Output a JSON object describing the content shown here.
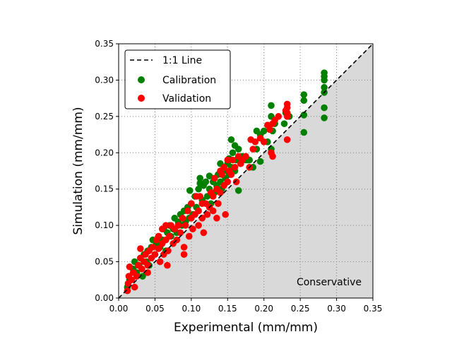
{
  "chart_data": {
    "type": "scatter",
    "xlabel": "Experimental (mm/mm)",
    "ylabel": "Simulation (mm/mm)",
    "xlim": [
      0,
      0.35
    ],
    "ylim": [
      0,
      0.35
    ],
    "xticks": [
      "0.00",
      "0.05",
      "0.10",
      "0.15",
      "0.20",
      "0.25",
      "0.30",
      "0.35"
    ],
    "yticks": [
      "0.00",
      "0.05",
      "0.10",
      "0.15",
      "0.20",
      "0.25",
      "0.30",
      "0.35"
    ],
    "grid": true,
    "legend_position": "top-left",
    "annotation": "Conservative",
    "reference_line": {
      "label": "1:1 Line",
      "style": "dashed",
      "color": "#000000"
    },
    "shaded_region_color": "#d9d9d9",
    "series": [
      {
        "name": "Calibration",
        "color": "#008000",
        "points": [
          [
            0.012,
            0.015
          ],
          [
            0.015,
            0.025
          ],
          [
            0.02,
            0.04
          ],
          [
            0.022,
            0.05
          ],
          [
            0.025,
            0.035
          ],
          [
            0.028,
            0.045
          ],
          [
            0.03,
            0.055
          ],
          [
            0.033,
            0.03
          ],
          [
            0.035,
            0.06
          ],
          [
            0.038,
            0.05
          ],
          [
            0.04,
            0.065
          ],
          [
            0.042,
            0.045
          ],
          [
            0.045,
            0.07
          ],
          [
            0.047,
            0.08
          ],
          [
            0.05,
            0.06
          ],
          [
            0.052,
            0.075
          ],
          [
            0.055,
            0.085
          ],
          [
            0.057,
            0.07
          ],
          [
            0.06,
            0.08
          ],
          [
            0.062,
            0.095
          ],
          [
            0.065,
            0.065
          ],
          [
            0.067,
            0.09
          ],
          [
            0.07,
            0.1
          ],
          [
            0.072,
            0.085
          ],
          [
            0.075,
            0.095
          ],
          [
            0.077,
            0.11
          ],
          [
            0.08,
            0.09
          ],
          [
            0.082,
            0.105
          ],
          [
            0.085,
            0.115
          ],
          [
            0.087,
            0.1
          ],
          [
            0.09,
            0.12
          ],
          [
            0.092,
            0.105
          ],
          [
            0.095,
            0.125
          ],
          [
            0.097,
            0.11
          ],
          [
            0.1,
            0.13
          ],
          [
            0.102,
            0.115
          ],
          [
            0.105,
            0.14
          ],
          [
            0.107,
            0.125
          ],
          [
            0.11,
            0.15
          ],
          [
            0.112,
            0.165
          ],
          [
            0.115,
            0.135
          ],
          [
            0.117,
            0.155
          ],
          [
            0.12,
            0.16
          ],
          [
            0.122,
            0.14
          ],
          [
            0.125,
            0.15
          ],
          [
            0.127,
            0.13
          ],
          [
            0.13,
            0.16
          ],
          [
            0.132,
            0.145
          ],
          [
            0.135,
            0.155
          ],
          [
            0.137,
            0.17
          ],
          [
            0.14,
            0.16
          ],
          [
            0.142,
            0.15
          ],
          [
            0.145,
            0.175
          ],
          [
            0.147,
            0.165
          ],
          [
            0.15,
            0.185
          ],
          [
            0.152,
            0.17
          ],
          [
            0.155,
            0.18
          ],
          [
            0.157,
            0.2
          ],
          [
            0.16,
            0.175
          ],
          [
            0.162,
            0.19
          ],
          [
            0.165,
            0.148
          ],
          [
            0.168,
            0.185
          ],
          [
            0.17,
            0.195
          ],
          [
            0.175,
            0.19
          ],
          [
            0.18,
            0.19
          ],
          [
            0.185,
            0.18
          ],
          [
            0.19,
            0.205
          ],
          [
            0.195,
            0.225
          ],
          [
            0.2,
            0.23
          ],
          [
            0.205,
            0.215
          ],
          [
            0.21,
            0.205
          ],
          [
            0.21,
            0.25
          ],
          [
            0.21,
            0.265
          ],
          [
            0.212,
            0.23
          ],
          [
            0.215,
            0.24
          ],
          [
            0.228,
            0.24
          ],
          [
            0.23,
            0.255
          ],
          [
            0.235,
            0.25
          ],
          [
            0.255,
            0.228
          ],
          [
            0.255,
            0.252
          ],
          [
            0.255,
            0.272
          ],
          [
            0.255,
            0.28
          ],
          [
            0.283,
            0.248
          ],
          [
            0.283,
            0.262
          ],
          [
            0.283,
            0.283
          ],
          [
            0.283,
            0.29
          ],
          [
            0.283,
            0.3
          ],
          [
            0.283,
            0.305
          ],
          [
            0.283,
            0.31
          ],
          [
            0.155,
            0.218
          ],
          [
            0.152,
            0.192
          ],
          [
            0.14,
            0.185
          ],
          [
            0.125,
            0.168
          ],
          [
            0.112,
            0.158
          ],
          [
            0.098,
            0.148
          ],
          [
            0.16,
            0.21
          ],
          [
            0.165,
            0.205
          ],
          [
            0.19,
            0.23
          ],
          [
            0.195,
            0.188
          ],
          [
            0.178,
            0.19
          ]
        ]
      },
      {
        "name": "Validation",
        "color": "#ff0000",
        "points": [
          [
            0.012,
            0.01
          ],
          [
            0.013,
            0.02
          ],
          [
            0.014,
            0.03
          ],
          [
            0.015,
            0.043
          ],
          [
            0.018,
            0.025
          ],
          [
            0.02,
            0.035
          ],
          [
            0.022,
            0.015
          ],
          [
            0.025,
            0.03
          ],
          [
            0.027,
            0.045
          ],
          [
            0.03,
            0.055
          ],
          [
            0.03,
            0.068
          ],
          [
            0.032,
            0.04
          ],
          [
            0.035,
            0.05
          ],
          [
            0.037,
            0.06
          ],
          [
            0.04,
            0.035
          ],
          [
            0.04,
            0.045
          ],
          [
            0.042,
            0.065
          ],
          [
            0.045,
            0.055
          ],
          [
            0.047,
            0.07
          ],
          [
            0.05,
            0.06
          ],
          [
            0.052,
            0.08
          ],
          [
            0.055,
            0.068
          ],
          [
            0.055,
            0.085
          ],
          [
            0.057,
            0.05
          ],
          [
            0.06,
            0.075
          ],
          [
            0.06,
            0.095
          ],
          [
            0.062,
            0.06
          ],
          [
            0.065,
            0.08
          ],
          [
            0.065,
            0.1
          ],
          [
            0.067,
            0.045
          ],
          [
            0.068,
            0.065
          ],
          [
            0.07,
            0.085
          ],
          [
            0.072,
            0.1
          ],
          [
            0.075,
            0.075
          ],
          [
            0.077,
            0.095
          ],
          [
            0.08,
            0.08
          ],
          [
            0.082,
            0.1
          ],
          [
            0.085,
            0.09
          ],
          [
            0.088,
            0.11
          ],
          [
            0.09,
            0.06
          ],
          [
            0.09,
            0.07
          ],
          [
            0.092,
            0.1
          ],
          [
            0.095,
            0.12
          ],
          [
            0.097,
            0.085
          ],
          [
            0.1,
            0.11
          ],
          [
            0.1,
            0.13
          ],
          [
            0.102,
            0.095
          ],
          [
            0.105,
            0.115
          ],
          [
            0.107,
            0.14
          ],
          [
            0.11,
            0.1
          ],
          [
            0.11,
            0.12
          ],
          [
            0.112,
            0.14
          ],
          [
            0.115,
            0.11
          ],
          [
            0.115,
            0.13
          ],
          [
            0.117,
            0.09
          ],
          [
            0.12,
            0.13
          ],
          [
            0.122,
            0.115
          ],
          [
            0.125,
            0.125
          ],
          [
            0.127,
            0.145
          ],
          [
            0.13,
            0.12
          ],
          [
            0.13,
            0.14
          ],
          [
            0.132,
            0.165
          ],
          [
            0.135,
            0.11
          ],
          [
            0.135,
            0.15
          ],
          [
            0.137,
            0.13
          ],
          [
            0.14,
            0.145
          ],
          [
            0.142,
            0.17
          ],
          [
            0.145,
            0.155
          ],
          [
            0.145,
            0.18
          ],
          [
            0.147,
            0.115
          ],
          [
            0.15,
            0.16
          ],
          [
            0.152,
            0.175
          ],
          [
            0.155,
            0.17
          ],
          [
            0.157,
            0.19
          ],
          [
            0.16,
            0.18
          ],
          [
            0.162,
            0.16
          ],
          [
            0.165,
            0.195
          ],
          [
            0.168,
            0.185
          ],
          [
            0.17,
            0.19
          ],
          [
            0.175,
            0.195
          ],
          [
            0.18,
            0.18
          ],
          [
            0.182,
            0.218
          ],
          [
            0.185,
            0.205
          ],
          [
            0.188,
            0.215
          ],
          [
            0.195,
            0.22
          ],
          [
            0.2,
            0.215
          ],
          [
            0.205,
            0.238
          ],
          [
            0.208,
            0.232
          ],
          [
            0.21,
            0.2
          ],
          [
            0.212,
            0.195
          ],
          [
            0.212,
            0.24
          ],
          [
            0.215,
            0.245
          ],
          [
            0.22,
            0.25
          ],
          [
            0.23,
            0.258
          ],
          [
            0.232,
            0.218
          ],
          [
            0.232,
            0.25
          ],
          [
            0.232,
            0.255
          ],
          [
            0.232,
            0.262
          ],
          [
            0.232,
            0.267
          ],
          [
            0.15,
            0.19
          ],
          [
            0.14,
            0.175
          ]
        ]
      }
    ]
  }
}
